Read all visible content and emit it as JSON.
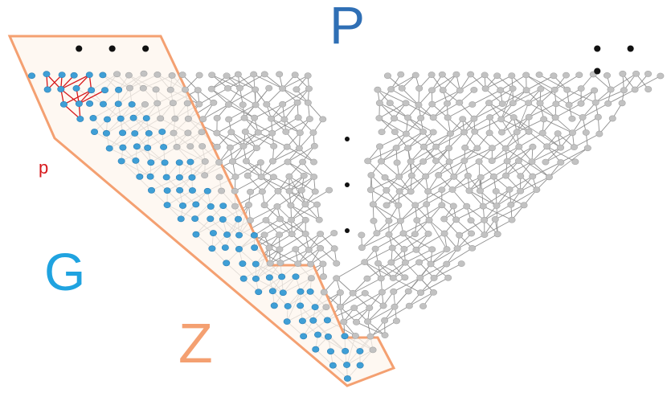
{
  "labels": {
    "P": "P",
    "G": "G",
    "Z": "Z",
    "p": "p"
  },
  "ellipsis": {
    "top_left": "• • •",
    "top_right": "• • •"
  },
  "colors": {
    "P": "#2f6fb5",
    "G": "#1fa3e0",
    "Z": "#f4a071",
    "p": "#d7191c",
    "region_border": "#f4a071",
    "region_fill": "#fdf6ee",
    "node_gray": "#c2c2c2",
    "edge_gray": "#8f8f8f",
    "node_blue": "#3f9fd6",
    "edge_red": "#d7191c"
  }
}
